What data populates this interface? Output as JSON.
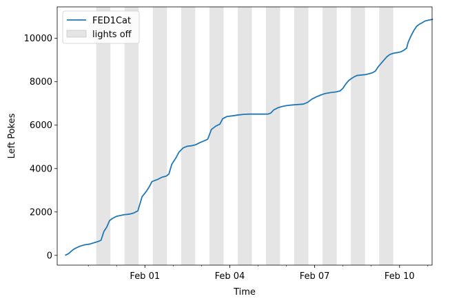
{
  "chart_data": {
    "type": "line",
    "xlabel": "Time",
    "ylabel": "Left Pokes",
    "title": "",
    "ylim": [
      -450,
      11450
    ],
    "xlim_days": [
      -0.1,
      11.15
    ],
    "x_ticks": [
      {
        "label": "Feb 01",
        "day": 3
      },
      {
        "label": "Feb 04",
        "day": 6
      },
      {
        "label": "Feb 07",
        "day": 9
      },
      {
        "label": "Feb 10",
        "day": 12
      }
    ],
    "y_ticks": [
      0,
      2000,
      4000,
      6000,
      8000,
      10000
    ],
    "legend": {
      "position": "upper-left",
      "entries": [
        {
          "label": "FED1Cat",
          "kind": "line",
          "color": "#1f77b4"
        },
        {
          "label": "lights off",
          "kind": "patch",
          "color": "#d3d3d3"
        }
      ]
    },
    "lights_off_days": [
      [
        0.28,
        0.78
      ],
      [
        1.28,
        1.78
      ],
      [
        2.28,
        2.78
      ],
      [
        3.28,
        3.78
      ],
      [
        4.28,
        4.78
      ],
      [
        5.28,
        5.78
      ],
      [
        6.28,
        6.78
      ],
      [
        7.28,
        7.78
      ],
      [
        8.28,
        8.78
      ],
      [
        9.28,
        9.78
      ],
      [
        10.28,
        10.78
      ]
    ],
    "series": [
      {
        "name": "FED1Cat",
        "color": "#1f77b4",
        "points": [
          [
            0.18,
            0
          ],
          [
            0.3,
            80
          ],
          [
            0.45,
            250
          ],
          [
            0.55,
            330
          ],
          [
            0.7,
            420
          ],
          [
            0.85,
            480
          ],
          [
            1.05,
            520
          ],
          [
            1.2,
            580
          ],
          [
            1.35,
            640
          ],
          [
            1.45,
            700
          ],
          [
            1.55,
            1100
          ],
          [
            1.65,
            1300
          ],
          [
            1.75,
            1600
          ],
          [
            1.85,
            1700
          ],
          [
            2.0,
            1800
          ],
          [
            2.25,
            1870
          ],
          [
            2.45,
            1900
          ],
          [
            2.6,
            1950
          ],
          [
            2.75,
            2050
          ],
          [
            2.9,
            2700
          ],
          [
            3.05,
            2950
          ],
          [
            3.15,
            3150
          ],
          [
            3.25,
            3400
          ],
          [
            3.45,
            3500
          ],
          [
            3.6,
            3600
          ],
          [
            3.75,
            3650
          ],
          [
            3.85,
            3750
          ],
          [
            3.95,
            4200
          ],
          [
            4.1,
            4500
          ],
          [
            4.2,
            4750
          ],
          [
            4.35,
            4950
          ],
          [
            4.5,
            5030
          ],
          [
            4.65,
            5050
          ],
          [
            4.8,
            5100
          ],
          [
            4.95,
            5200
          ],
          [
            5.1,
            5280
          ],
          [
            5.22,
            5350
          ],
          [
            5.35,
            5800
          ],
          [
            5.5,
            5950
          ],
          [
            5.65,
            6050
          ],
          [
            5.75,
            6300
          ],
          [
            5.9,
            6400
          ],
          [
            6.1,
            6430
          ],
          [
            6.3,
            6470
          ],
          [
            6.5,
            6500
          ],
          [
            6.7,
            6510
          ],
          [
            6.9,
            6510
          ],
          [
            7.1,
            6510
          ],
          [
            7.35,
            6510
          ],
          [
            7.45,
            6560
          ],
          [
            7.55,
            6700
          ],
          [
            7.7,
            6800
          ],
          [
            7.85,
            6860
          ],
          [
            8.0,
            6900
          ],
          [
            8.2,
            6930
          ],
          [
            8.4,
            6950
          ],
          [
            8.6,
            6970
          ],
          [
            8.75,
            7050
          ],
          [
            8.9,
            7200
          ],
          [
            9.05,
            7300
          ],
          [
            9.2,
            7380
          ],
          [
            9.35,
            7450
          ],
          [
            9.55,
            7500
          ],
          [
            9.75,
            7530
          ],
          [
            9.9,
            7580
          ],
          [
            10.0,
            7700
          ],
          [
            10.1,
            7900
          ],
          [
            10.2,
            8050
          ],
          [
            10.3,
            8150
          ],
          [
            10.4,
            8230
          ],
          [
            10.5,
            8290
          ],
          [
            10.65,
            8310
          ],
          [
            10.8,
            8330
          ],
          [
            10.95,
            8380
          ],
          [
            11.05,
            8420
          ],
          [
            11.15,
            8500
          ],
          [
            11.25,
            8700
          ],
          [
            11.35,
            8850
          ],
          [
            11.45,
            9000
          ],
          [
            11.55,
            9150
          ],
          [
            11.65,
            9250
          ],
          [
            11.75,
            9300
          ],
          [
            11.85,
            9330
          ],
          [
            11.95,
            9350
          ],
          [
            12.05,
            9380
          ],
          [
            12.15,
            9450
          ],
          [
            12.25,
            9550
          ],
          [
            12.3,
            9800
          ],
          [
            12.4,
            10100
          ],
          [
            12.5,
            10350
          ],
          [
            12.6,
            10550
          ],
          [
            12.7,
            10650
          ],
          [
            12.8,
            10720
          ],
          [
            12.9,
            10800
          ],
          [
            13.0,
            10830
          ],
          [
            13.1,
            10860
          ],
          [
            13.18,
            10880
          ]
        ]
      }
    ]
  }
}
